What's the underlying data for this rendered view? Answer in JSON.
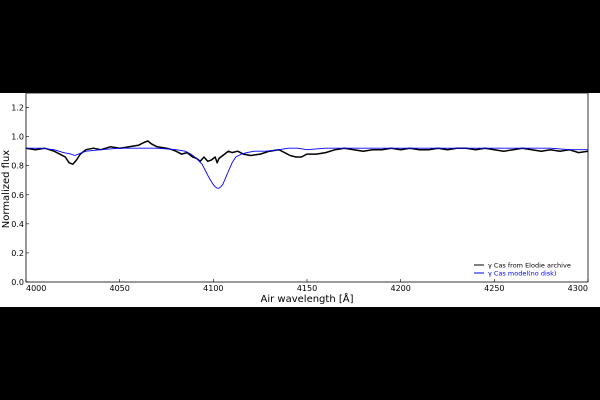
{
  "chart_data": {
    "type": "line",
    "xlabel": "Air wavelength [Å]",
    "ylabel": "Normalized flux",
    "xlim": [
      4000,
      4300
    ],
    "ylim": [
      0.0,
      1.3
    ],
    "xticks": [
      4000,
      4050,
      4100,
      4150,
      4200,
      4250,
      4300
    ],
    "xtick_labels": [
      "4000",
      "4050",
      "4100",
      "4150",
      "4200",
      "4250",
      "4300"
    ],
    "yticks": [
      0.0,
      0.2,
      0.4,
      0.6,
      0.8,
      1.0,
      1.2
    ],
    "ytick_labels": [
      "0.0",
      "0.2",
      "0.4",
      "0.6",
      "0.8",
      "1.0",
      "1.2"
    ],
    "grid": false,
    "legend_position": "lower-right",
    "series": [
      {
        "name": "γ Cas from Elodie archive",
        "color": "#000000",
        "x": [
          4000,
          4005,
          4010,
          4015,
          4018,
          4021,
          4023,
          4025,
          4027,
          4029,
          4032,
          4036,
          4040,
          4045,
          4050,
          4055,
          4060,
          4063,
          4065,
          4067,
          4070,
          4075,
          4078,
          4080,
          4083,
          4086,
          4089,
          4091,
          4093,
          4095,
          4097,
          4099,
          4101,
          4102,
          4103,
          4104,
          4106,
          4108,
          4110,
          4113,
          4116,
          4120,
          4125,
          4130,
          4135,
          4138,
          4141,
          4144,
          4147,
          4150,
          4155,
          4160,
          4165,
          4170,
          4175,
          4180,
          4185,
          4190,
          4195,
          4200,
          4205,
          4210,
          4215,
          4220,
          4225,
          4230,
          4235,
          4240,
          4245,
          4250,
          4255,
          4260,
          4265,
          4270,
          4275,
          4280,
          4285,
          4290,
          4295,
          4300
        ],
        "y": [
          0.92,
          0.91,
          0.92,
          0.9,
          0.88,
          0.86,
          0.82,
          0.81,
          0.84,
          0.88,
          0.91,
          0.92,
          0.91,
          0.93,
          0.92,
          0.93,
          0.94,
          0.96,
          0.97,
          0.95,
          0.93,
          0.92,
          0.91,
          0.9,
          0.88,
          0.89,
          0.86,
          0.85,
          0.83,
          0.86,
          0.83,
          0.84,
          0.86,
          0.82,
          0.85,
          0.86,
          0.88,
          0.9,
          0.89,
          0.9,
          0.88,
          0.87,
          0.88,
          0.9,
          0.91,
          0.89,
          0.87,
          0.86,
          0.86,
          0.88,
          0.88,
          0.89,
          0.91,
          0.92,
          0.91,
          0.9,
          0.91,
          0.91,
          0.92,
          0.91,
          0.92,
          0.91,
          0.91,
          0.92,
          0.91,
          0.92,
          0.92,
          0.91,
          0.92,
          0.91,
          0.9,
          0.91,
          0.92,
          0.91,
          0.9,
          0.91,
          0.9,
          0.91,
          0.89,
          0.9
        ]
      },
      {
        "name": "γ Cas model(no disk)",
        "color": "#0000ff",
        "x": [
          4000,
          4008,
          4015,
          4020,
          4024,
          4026,
          4028,
          4032,
          4040,
          4050,
          4060,
          4070,
          4080,
          4085,
          4088,
          4091,
          4094,
          4096,
          4098,
          4100,
          4101,
          4102,
          4103,
          4104,
          4105,
          4106,
          4108,
          4110,
          4112,
          4115,
          4118,
          4122,
          4128,
          4135,
          4140,
          4145,
          4150,
          4160,
          4170,
          4180,
          4190,
          4200,
          4210,
          4220,
          4230,
          4240,
          4250,
          4260,
          4270,
          4280,
          4290,
          4300
        ],
        "y": [
          0.92,
          0.92,
          0.91,
          0.89,
          0.88,
          0.87,
          0.88,
          0.9,
          0.91,
          0.92,
          0.92,
          0.92,
          0.91,
          0.9,
          0.88,
          0.85,
          0.81,
          0.76,
          0.71,
          0.67,
          0.655,
          0.645,
          0.645,
          0.655,
          0.67,
          0.7,
          0.76,
          0.82,
          0.86,
          0.88,
          0.89,
          0.9,
          0.9,
          0.91,
          0.92,
          0.92,
          0.91,
          0.92,
          0.92,
          0.92,
          0.92,
          0.92,
          0.92,
          0.92,
          0.92,
          0.92,
          0.92,
          0.92,
          0.92,
          0.92,
          0.91,
          0.91
        ]
      }
    ]
  }
}
